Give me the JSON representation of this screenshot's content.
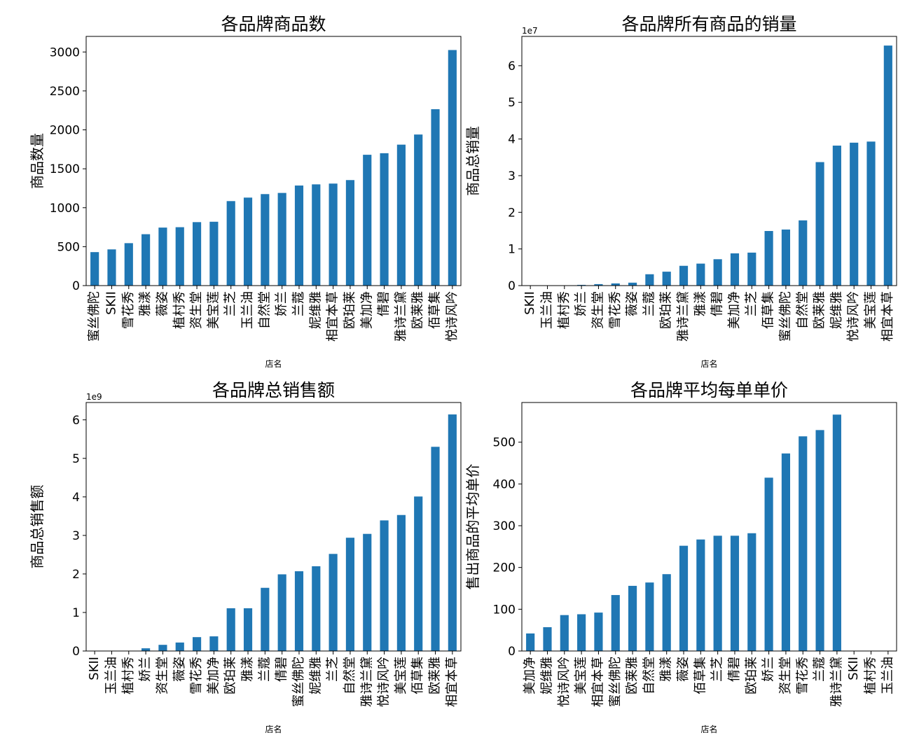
{
  "colors": {
    "bar": "#1f77b4"
  },
  "chart_data": [
    {
      "type": "bar",
      "title": "各品牌商品数",
      "xlabel": "店名",
      "ylabel": "商品数量",
      "multiplier": "",
      "ylim": [
        0,
        3200
      ],
      "yticks": [
        0,
        500,
        1000,
        1500,
        2000,
        2500,
        3000
      ],
      "ytick_labels": [
        "0",
        "500",
        "1000",
        "1500",
        "2000",
        "2500",
        "3000"
      ],
      "categories": [
        "蜜丝佛陀",
        "SKII",
        "雪花秀",
        "雅漾",
        "薇姿",
        "植村秀",
        "资生堂",
        "美宝莲",
        "兰芝",
        "玉兰油",
        "自然堂",
        "娇兰",
        "兰蔻",
        "妮维雅",
        "相宜本草",
        "欧珀莱",
        "美加净",
        "倩碧",
        "雅诗兰黛",
        "欧莱雅",
        "佰草集",
        "悦诗风吟"
      ],
      "values": [
        430,
        465,
        545,
        660,
        745,
        750,
        815,
        820,
        1085,
        1130,
        1175,
        1190,
        1285,
        1300,
        1310,
        1355,
        1680,
        1700,
        1810,
        1940,
        2265,
        3025
      ]
    },
    {
      "type": "bar",
      "title": "各品牌所有商品的销量",
      "xlabel": "店名",
      "ylabel": "商品总销量",
      "multiplier": "1e7",
      "ylim": [
        0,
        6.8
      ],
      "yticks": [
        0,
        1,
        2,
        3,
        4,
        5,
        6
      ],
      "ytick_labels": [
        "0",
        "1",
        "2",
        "3",
        "4",
        "5",
        "6"
      ],
      "categories": [
        "SKII",
        "玉兰油",
        "植村秀",
        "娇兰",
        "资生堂",
        "雪花秀",
        "薇姿",
        "兰蔻",
        "欧珀莱",
        "雅诗兰黛",
        "雅漾",
        "倩碧",
        "美加净",
        "兰芝",
        "佰草集",
        "蜜丝佛陀",
        "自然堂",
        "欧莱雅",
        "妮维雅",
        "悦诗风吟",
        "美宝莲",
        "相宜本草"
      ],
      "values": [
        0,
        0,
        0.005,
        0.02,
        0.04,
        0.06,
        0.08,
        0.31,
        0.38,
        0.54,
        0.6,
        0.72,
        0.88,
        0.9,
        1.49,
        1.53,
        1.78,
        3.37,
        3.82,
        3.9,
        3.93,
        6.55
      ]
    },
    {
      "type": "bar",
      "title": "各品牌总销售额",
      "xlabel": "店名",
      "ylabel": "商品总销售额",
      "multiplier": "1e9",
      "ylim": [
        0,
        6.45
      ],
      "yticks": [
        0,
        1,
        2,
        3,
        4,
        5,
        6
      ],
      "ytick_labels": [
        "0",
        "1",
        "2",
        "3",
        "4",
        "5",
        "6"
      ],
      "categories": [
        "SKII",
        "玉兰油",
        "植村秀",
        "娇兰",
        "资生堂",
        "薇姿",
        "雪花秀",
        "美加净",
        "欧珀莱",
        "雅漾",
        "兰蔻",
        "倩碧",
        "蜜丝佛陀",
        "妮维雅",
        "兰芝",
        "自然堂",
        "雅诗兰黛",
        "悦诗风吟",
        "美宝莲",
        "佰草集",
        "欧莱雅",
        "相宜本草"
      ],
      "values": [
        0,
        0,
        0.005,
        0.07,
        0.16,
        0.22,
        0.36,
        0.38,
        1.11,
        1.11,
        1.64,
        1.99,
        2.07,
        2.2,
        2.52,
        2.94,
        3.04,
        3.39,
        3.53,
        4.01,
        5.3,
        6.14
      ]
    },
    {
      "type": "bar",
      "title": "各品牌平均每单单价",
      "xlabel": "店名",
      "ylabel": "售出商品的平均单价",
      "multiplier": "",
      "ylim": [
        0,
        595
      ],
      "yticks": [
        0,
        100,
        200,
        300,
        400,
        500
      ],
      "ytick_labels": [
        "0",
        "100",
        "200",
        "300",
        "400",
        "500"
      ],
      "categories": [
        "美加净",
        "妮维雅",
        "悦诗风吟",
        "美宝莲",
        "相宜本草",
        "蜜丝佛陀",
        "欧莱雅",
        "自然堂",
        "雅漾",
        "薇姿",
        "佰草集",
        "兰芝",
        "倩碧",
        "欧珀莱",
        "娇兰",
        "资生堂",
        "雪花秀",
        "兰蔻",
        "雅诗兰黛",
        "SKII",
        "植村秀",
        "玉兰油"
      ],
      "values": [
        42,
        57,
        86,
        88,
        92,
        134,
        156,
        164,
        184,
        252,
        267,
        276,
        276,
        282,
        415,
        473,
        514,
        529,
        566,
        0,
        0,
        0
      ]
    }
  ]
}
